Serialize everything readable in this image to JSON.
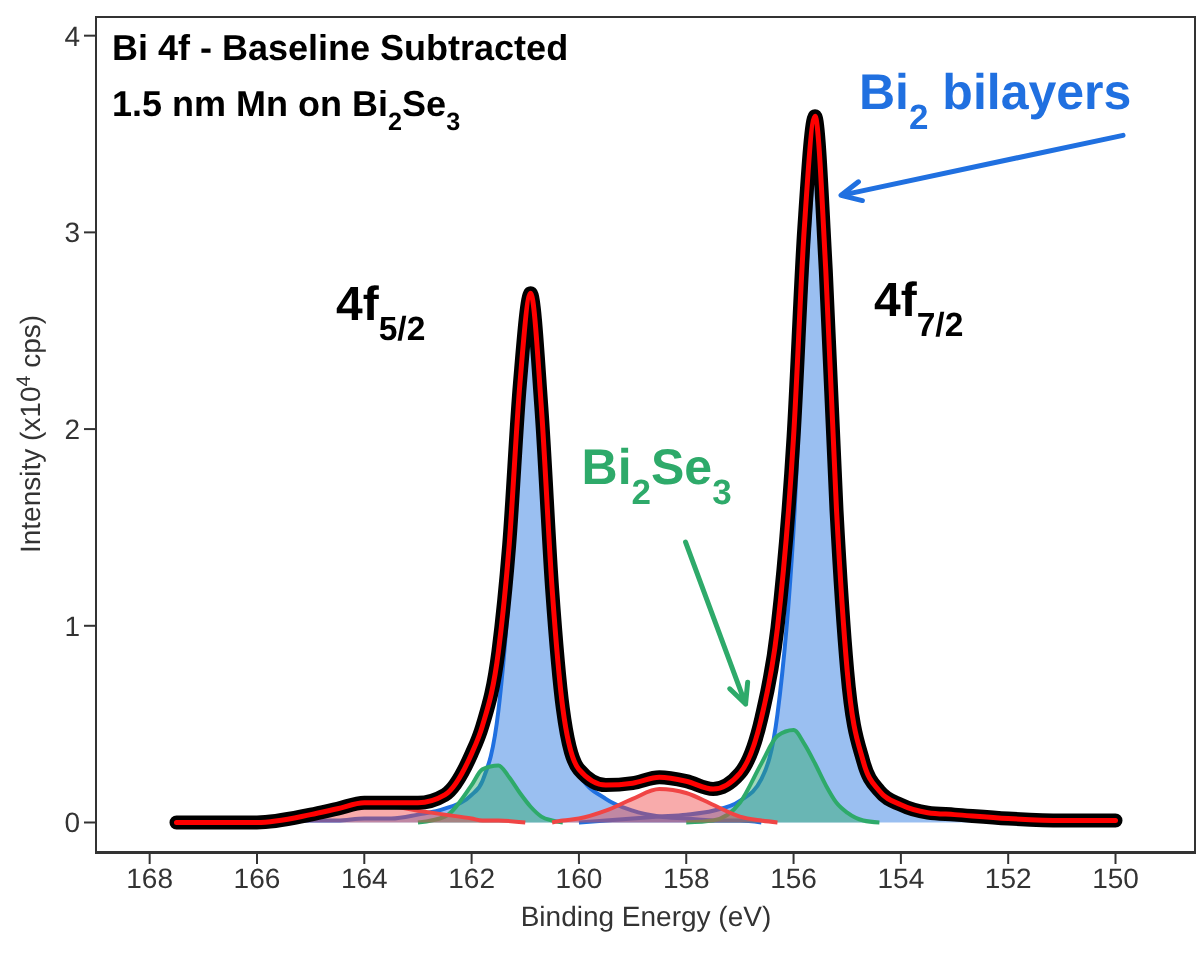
{
  "chart_data": {
    "type": "line",
    "title": "Bi 4f - Baseline Subtracted",
    "subtitle": "1.5 nm Mn on Bi$_{2}$Se$_{3}$",
    "xlabel": "Binding Energy (eV)",
    "ylabel": "Intensity (x10$^{4}$ cps)",
    "xlim": [
      169,
      148.5
    ],
    "xticks": [
      168,
      166,
      164,
      162,
      160,
      158,
      156,
      154,
      152,
      150
    ],
    "ylim": [
      -0.15,
      4.1
    ],
    "yticks": [
      0,
      1,
      2,
      3,
      4
    ],
    "annotations": [
      "4f$_{5/2}$",
      "4f$_{7/2}$"
    ],
    "x": [
      167.5,
      167,
      166,
      165,
      164.5,
      164,
      163.5,
      163,
      162.5,
      162,
      161.8,
      161.5,
      161.3,
      161.1,
      160.9,
      160.7,
      160.5,
      160.3,
      160,
      159.5,
      159,
      158.5,
      158,
      157.5,
      157,
      156.6,
      156.3,
      156,
      155.8,
      155.6,
      155.4,
      155.2,
      155,
      154.7,
      154.4,
      154,
      153.5,
      153,
      152,
      151,
      150
    ],
    "series": [
      {
        "type": "area",
        "color": "#2070e0",
        "x": [
          166,
          165,
          164.5,
          164,
          163.5,
          163,
          162.5,
          162,
          161.8,
          161.5,
          161.3,
          161.1,
          160.9,
          160.7,
          160.5,
          160.3,
          160,
          159.5,
          159,
          158.5,
          158,
          157.5,
          157,
          156.6
        ],
        "values": [
          0,
          0.01,
          0.01,
          0.02,
          0.02,
          0.04,
          0.07,
          0.14,
          0.21,
          0.57,
          1.18,
          2.08,
          2.61,
          2.08,
          1.18,
          0.57,
          0.25,
          0.12,
          0.06,
          0.03,
          0.02,
          0.01,
          0.01,
          0
        ]
      },
      {
        "type": "area",
        "name": "Bi$_{2}$ bilayers",
        "color": "#2070e0",
        "x": [
          160,
          159.5,
          159,
          158.5,
          158,
          157.5,
          157,
          156.6,
          156.3,
          156,
          155.8,
          155.6,
          155.4,
          155.2,
          155,
          154.7,
          154.4,
          154,
          153.5,
          153,
          152,
          151,
          150
        ],
        "values": [
          0,
          0.01,
          0.02,
          0.03,
          0.04,
          0.06,
          0.11,
          0.22,
          0.55,
          1.49,
          2.62,
          3.29,
          2.62,
          1.49,
          0.72,
          0.3,
          0.16,
          0.09,
          0.05,
          0.04,
          0.02,
          0.01,
          0.01
        ]
      },
      {
        "type": "area",
        "color": "#2eaa6a",
        "x": [
          163,
          162.5,
          162,
          161.8,
          161.5,
          161.3,
          161.1,
          160.9,
          160.7,
          160.5,
          160.3
        ],
        "values": [
          0,
          0.03,
          0.19,
          0.27,
          0.29,
          0.23,
          0.15,
          0.08,
          0.03,
          0.01,
          0
        ]
      },
      {
        "type": "area",
        "name": "Bi$_{2}$Se$_{3}$",
        "color": "#2eaa6a",
        "x": [
          158,
          157.5,
          157,
          156.6,
          156.3,
          156,
          155.8,
          155.6,
          155.4,
          155.2,
          155,
          154.7,
          154.4
        ],
        "values": [
          0,
          0.01,
          0.1,
          0.3,
          0.44,
          0.47,
          0.4,
          0.3,
          0.19,
          0.1,
          0.05,
          0.01,
          0
        ]
      },
      {
        "type": "area",
        "color": "#f04545",
        "x": [
          160.5,
          160.3,
          160,
          159.5,
          159,
          158.5,
          158,
          157.5,
          157,
          156.6,
          156.3
        ],
        "values": [
          0,
          0.01,
          0.02,
          0.06,
          0.12,
          0.17,
          0.15,
          0.09,
          0.03,
          0.01,
          0
        ]
      },
      {
        "type": "area",
        "color": "#f04545",
        "x": [
          166,
          165,
          164.5,
          164,
          163.5,
          163,
          162.5,
          162,
          161.8,
          161.5,
          161
        ],
        "values": [
          0,
          0.03,
          0.06,
          0.08,
          0.08,
          0.06,
          0.04,
          0.02,
          0.01,
          0.01,
          0
        ]
      },
      {
        "color": "#000000",
        "values": [
          0,
          0,
          0,
          0.04,
          0.07,
          0.1,
          0.1,
          0.1,
          0.14,
          0.35,
          0.49,
          0.87,
          1.41,
          2.23,
          2.69,
          2.11,
          1.19,
          0.58,
          0.27,
          0.19,
          0.2,
          0.23,
          0.21,
          0.17,
          0.25,
          0.53,
          0.99,
          1.96,
          3.02,
          3.59,
          2.81,
          1.59,
          0.77,
          0.31,
          0.16,
          0.09,
          0.05,
          0.04,
          0.02,
          0.01,
          0.01
        ]
      },
      {
        "color": "#ff0000",
        "values": [
          0,
          0,
          0,
          0.04,
          0.07,
          0.1,
          0.1,
          0.1,
          0.14,
          0.35,
          0.49,
          0.87,
          1.41,
          2.23,
          2.69,
          2.11,
          1.19,
          0.58,
          0.27,
          0.19,
          0.2,
          0.23,
          0.21,
          0.17,
          0.25,
          0.53,
          0.99,
          1.96,
          3.02,
          3.59,
          2.81,
          1.59,
          0.77,
          0.31,
          0.16,
          0.09,
          0.05,
          0.04,
          0.02,
          0.01,
          0.01
        ]
      }
    ]
  }
}
